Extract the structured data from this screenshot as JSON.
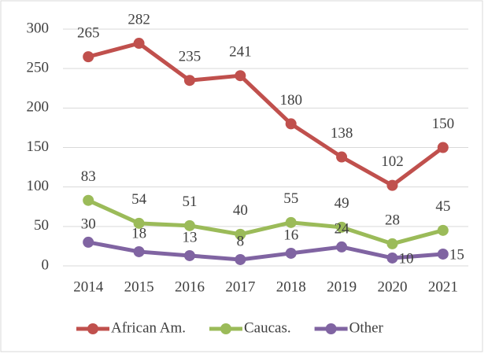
{
  "chart_data": {
    "type": "line",
    "categories": [
      "2014",
      "2015",
      "2016",
      "2017",
      "2018",
      "2019",
      "2020",
      "2021"
    ],
    "series": [
      {
        "name": "African Am.",
        "color": "#c0504d",
        "values": [
          265,
          282,
          235,
          241,
          180,
          138,
          102,
          150
        ]
      },
      {
        "name": "Caucas.",
        "color": "#9bbb59",
        "values": [
          83,
          54,
          51,
          40,
          55,
          49,
          28,
          45
        ]
      },
      {
        "name": "Other",
        "color": "#8064a2",
        "values": [
          30,
          18,
          13,
          8,
          16,
          24,
          10,
          15
        ]
      }
    ],
    "ylim": [
      0,
      300
    ],
    "yticks": [
      0,
      50,
      100,
      150,
      200,
      250,
      300
    ],
    "grid": true,
    "legend": "bottom"
  }
}
